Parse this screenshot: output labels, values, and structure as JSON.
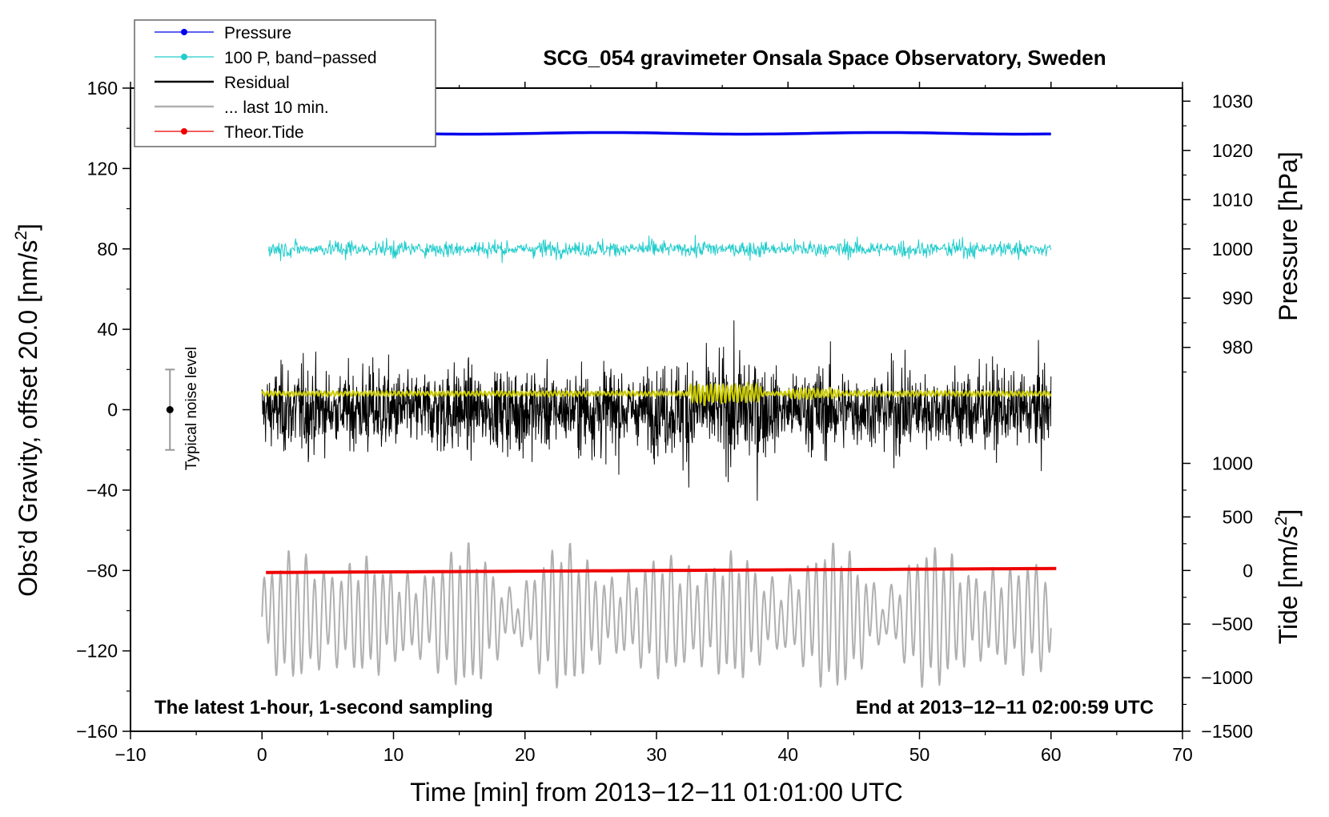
{
  "chart_data": {
    "type": "line",
    "title": "SCG_054 gravimeter Onsala Space Observatory, Sweden",
    "xlabel": "Time [min] from 2013−12−11 01:01:00 UTC",
    "ylabel_main": "Obs’d Gravity, offset 20.0 [nm/s",
    "ylabel_main_sup": "2",
    "ylabel_main_end": "]",
    "ylabel_pressure": "Pressure [hPa]",
    "ylabel_tide": "Tide [nm/s",
    "ylabel_tide_sup": "2",
    "ylabel_tide_end": "]",
    "xlim": [
      -10,
      70
    ],
    "ylim": [
      -160,
      160
    ],
    "x_ticks": [
      -10,
      0,
      10,
      20,
      30,
      40,
      50,
      60,
      70
    ],
    "x_tick_labels": [
      "−10",
      "0",
      "10",
      "20",
      "30",
      "40",
      "50",
      "60",
      "70"
    ],
    "y_ticks": [
      -160,
      -120,
      -80,
      -40,
      0,
      40,
      80,
      120,
      160
    ],
    "y_tick_labels": [
      "−160",
      "−120",
      "−80",
      "−40",
      "0",
      "40",
      "80",
      "120",
      "160"
    ],
    "pressure_axis": {
      "ticks": [
        980,
        990,
        1000,
        1010,
        1020,
        1030
      ],
      "tick_labels": [
        "980",
        "990",
        "1000",
        "1010",
        "1020",
        "1030"
      ],
      "y_at_1000": 80,
      "main_units_per_hpa": 2.45
    },
    "tide_axis": {
      "ticks": [
        -1500,
        -1000,
        -500,
        0,
        500,
        1000
      ],
      "tick_labels": [
        "−1500",
        "−1000",
        "−500",
        "0",
        "500",
        "1000"
      ],
      "y_at_0": -80,
      "main_units_per_nms2": 0.0533
    },
    "annotation_left": "The latest 1-hour, 1-second sampling",
    "annotation_right": "End at 2013−12−11 02:00:59 UTC",
    "noise_label": "Typical noise level",
    "noise_bar": {
      "x": -7,
      "center": 0,
      "low": -20,
      "high": 20
    },
    "legend": [
      {
        "label": "Pressure",
        "color": "#0000ee",
        "marker": true
      },
      {
        "label": "100 P, band−passed",
        "color": "#22cccc",
        "marker": true
      },
      {
        "label": "Residual",
        "color": "#000000",
        "marker": false
      },
      {
        "label": "... last 10 min.",
        "color": "#b0b0b0",
        "marker": false
      },
      {
        "label": "Theor.Tide",
        "color": "#ee0000",
        "marker": true
      }
    ],
    "series": [
      {
        "name": "Pressure",
        "color": "#0000ee",
        "x_range": [
          0,
          60
        ],
        "level": 137.5,
        "amp": 0.4
      },
      {
        "name": "100 P, band−passed",
        "color": "#22cccc",
        "x_range": [
          0.5,
          60
        ],
        "level": 80,
        "amp": 6
      },
      {
        "name": "Residual",
        "color": "#000000",
        "x_range": [
          0,
          60
        ],
        "level": 0,
        "amp": 24
      },
      {
        "name": "Residual (smoothed)",
        "color": "#cccc00",
        "x_range": [
          0,
          60
        ],
        "level": 8,
        "amp": 1.5
      },
      {
        "name": "... last 10 min.",
        "color": "#b0b0b0",
        "x_range": [
          0,
          60
        ],
        "level": -103,
        "amp": 26
      },
      {
        "name": "Theor.Tide",
        "color": "#ee0000",
        "x_range": [
          0.3,
          60.4
        ],
        "start": -81,
        "end": -79
      }
    ]
  }
}
